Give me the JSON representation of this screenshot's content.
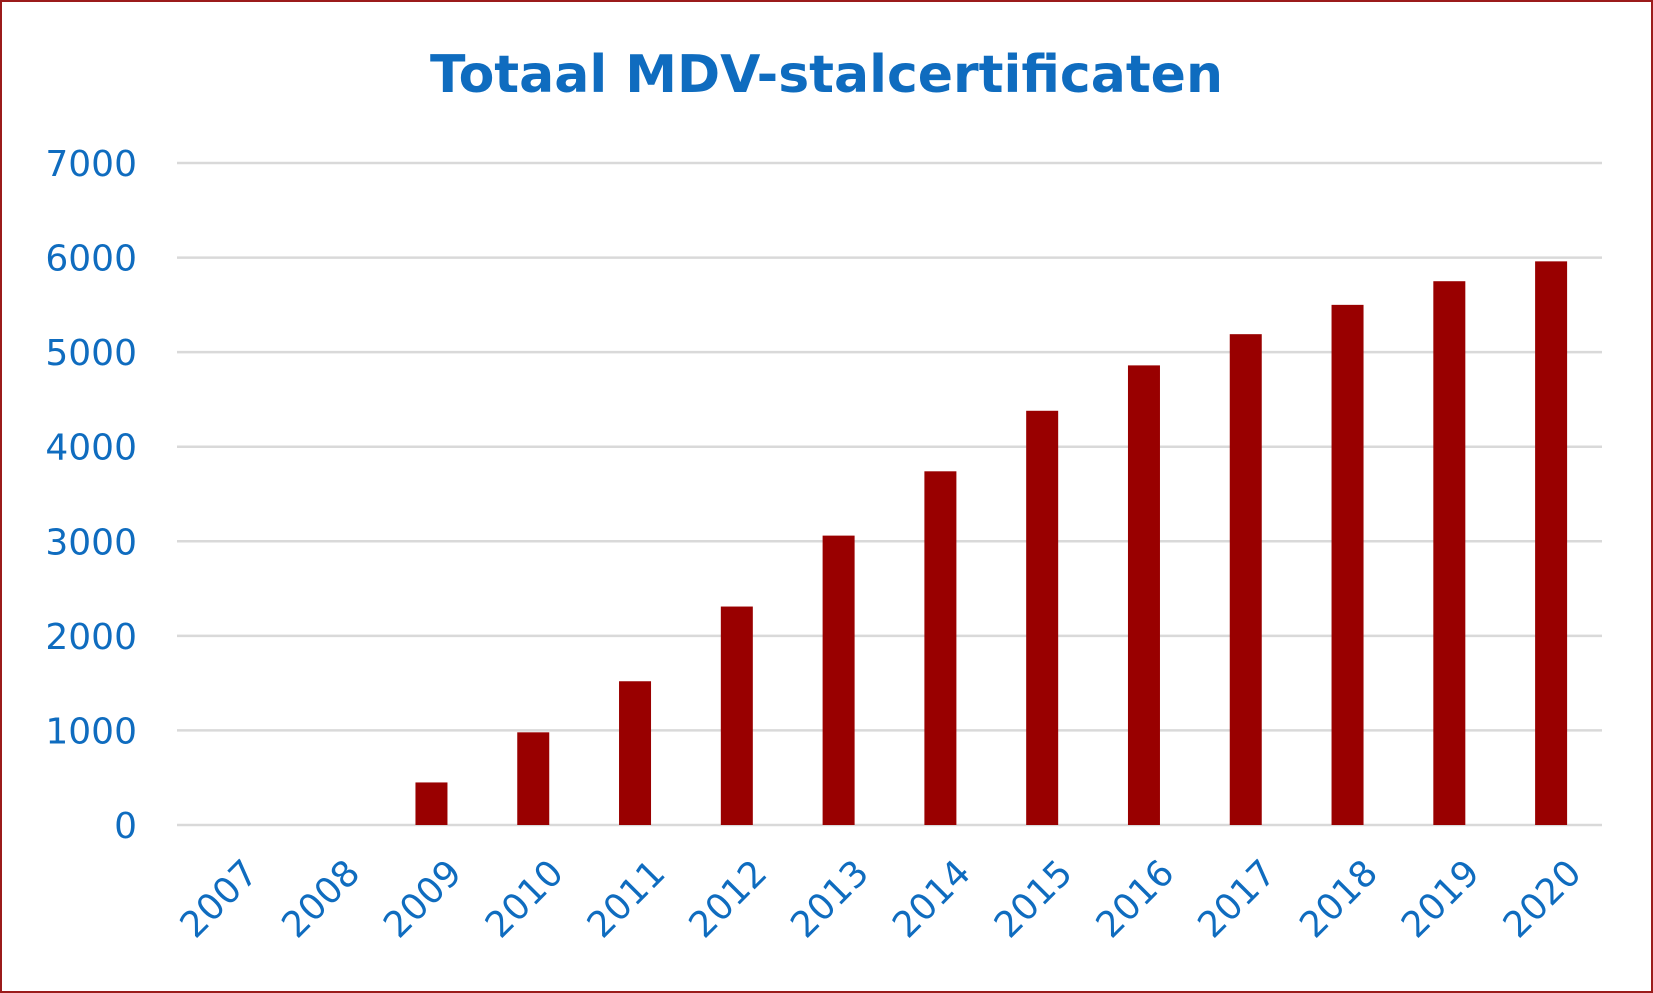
{
  "colors": {
    "title": "#0f6cbf",
    "axis_text": "#0f6cbf",
    "bar": "#990000",
    "grid": "#d9d9d9",
    "border": "#9b1b1b"
  },
  "chart_data": {
    "type": "bar",
    "title": "Totaal MDV-stalcertificaten",
    "xlabel": "",
    "ylabel": "",
    "categories": [
      "2007",
      "2008",
      "2009",
      "2010",
      "2011",
      "2012",
      "2013",
      "2014",
      "2015",
      "2016",
      "2017",
      "2018",
      "2019",
      "2020"
    ],
    "values": [
      0,
      0,
      450,
      980,
      1520,
      2310,
      3060,
      3740,
      4380,
      4860,
      5190,
      5500,
      5750,
      5960
    ],
    "ylim": [
      0,
      7000
    ],
    "yticks": [
      "0",
      "1000",
      "2000",
      "3000",
      "4000",
      "5000",
      "6000",
      "7000"
    ],
    "grid": true,
    "legend": "none"
  }
}
